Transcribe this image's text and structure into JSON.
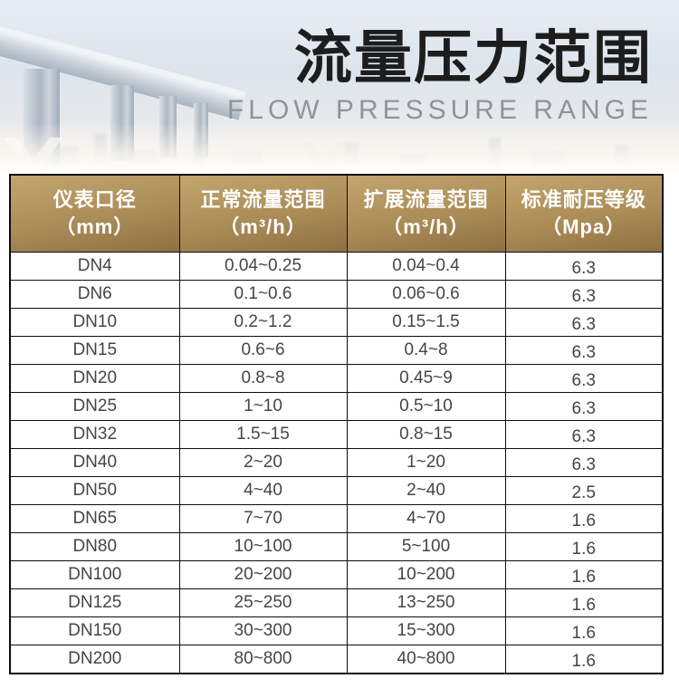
{
  "hero": {
    "title": "流量压力范围",
    "subtitle": "FLOW PRESSURE RANGE"
  },
  "table": {
    "columns": [
      {
        "name": "仪表口径",
        "unit": "（mm）"
      },
      {
        "name": "正常流量范围",
        "unit": "（m³/h）"
      },
      {
        "name": "扩展流量范围",
        "unit": "（m³/h）"
      },
      {
        "name": "标准耐压等级",
        "unit": "（Mpa）"
      }
    ],
    "rows": [
      [
        "DN4",
        "0.04~0.25",
        "0.04~0.4",
        "6.3"
      ],
      [
        "DN6",
        "0.1~0.6",
        "0.06~0.6",
        "6.3"
      ],
      [
        "DN10",
        "0.2~1.2",
        "0.15~1.5",
        "6.3"
      ],
      [
        "DN15",
        "0.6~6",
        "0.4~8",
        "6.3"
      ],
      [
        "DN20",
        "0.8~8",
        "0.45~9",
        "6.3"
      ],
      [
        "DN25",
        "1~10",
        "0.5~10",
        "6.3"
      ],
      [
        "DN32",
        "1.5~15",
        "0.8~15",
        "6.3"
      ],
      [
        "DN40",
        "2~20",
        "1~20",
        "6.3"
      ],
      [
        "DN50",
        "4~40",
        "2~40",
        "2.5"
      ],
      [
        "DN65",
        "7~70",
        "4~70",
        "1.6"
      ],
      [
        "DN80",
        "10~100",
        "5~100",
        "1.6"
      ],
      [
        "DN100",
        "20~200",
        "10~200",
        "1.6"
      ],
      [
        "DN125",
        "25~250",
        "13~250",
        "1.6"
      ],
      [
        "DN150",
        "30~300",
        "15~300",
        "1.6"
      ],
      [
        "DN200",
        "80~800",
        "40~800",
        "1.6"
      ]
    ]
  },
  "colors": {
    "header_gold_top": "#c3a56e",
    "header_gold_bottom": "#8d7143",
    "table_border": "#0d0d0d",
    "cell_text": "#454545",
    "title_text": "#1d1d1d",
    "subtitle_text": "#8f9499",
    "sky_light": "#e7edf3",
    "bridge_gray": "#aab4bf"
  }
}
